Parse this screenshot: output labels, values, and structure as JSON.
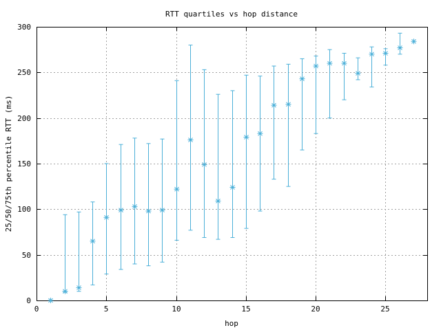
{
  "chart_data": {
    "type": "scatter",
    "title": "RTT quartiles vs hop distance",
    "xlabel": "hop",
    "ylabel": "25/50/75th percentile RTT (ms)",
    "xlim": [
      0,
      28
    ],
    "ylim": [
      0,
      300
    ],
    "xticks": [
      0,
      5,
      10,
      15,
      20,
      25
    ],
    "yticks": [
      0,
      50,
      100,
      150,
      200,
      250,
      300
    ],
    "grid": true,
    "series_color": "#4aafd8",
    "points": [
      {
        "hop": 1,
        "p25": 0,
        "median": 0,
        "p75": 0
      },
      {
        "hop": 2,
        "p25": 9,
        "median": 10,
        "p75": 94
      },
      {
        "hop": 3,
        "p25": 10,
        "median": 14,
        "p75": 97
      },
      {
        "hop": 4,
        "p25": 17,
        "median": 65,
        "p75": 108
      },
      {
        "hop": 5,
        "p25": 29,
        "median": 91,
        "p75": 150
      },
      {
        "hop": 6,
        "p25": 34,
        "median": 99,
        "p75": 171
      },
      {
        "hop": 7,
        "p25": 40,
        "median": 103,
        "p75": 178
      },
      {
        "hop": 8,
        "p25": 38,
        "median": 98,
        "p75": 172
      },
      {
        "hop": 9,
        "p25": 42,
        "median": 99,
        "p75": 177
      },
      {
        "hop": 10,
        "p25": 66,
        "median": 122,
        "p75": 241
      },
      {
        "hop": 11,
        "p25": 77,
        "median": 176,
        "p75": 280
      },
      {
        "hop": 12,
        "p25": 69,
        "median": 149,
        "p75": 253
      },
      {
        "hop": 13,
        "p25": 67,
        "median": 109,
        "p75": 226
      },
      {
        "hop": 14,
        "p25": 69,
        "median": 124,
        "p75": 230
      },
      {
        "hop": 15,
        "p25": 79,
        "median": 179,
        "p75": 247
      },
      {
        "hop": 16,
        "p25": 98,
        "median": 183,
        "p75": 246
      },
      {
        "hop": 17,
        "p25": 133,
        "median": 214,
        "p75": 257
      },
      {
        "hop": 18,
        "p25": 125,
        "median": 215,
        "p75": 259
      },
      {
        "hop": 19,
        "p25": 165,
        "median": 243,
        "p75": 265
      },
      {
        "hop": 20,
        "p25": 183,
        "median": 257,
        "p75": 268
      },
      {
        "hop": 21,
        "p25": 200,
        "median": 260,
        "p75": 275
      },
      {
        "hop": 22,
        "p25": 220,
        "median": 260,
        "p75": 271
      },
      {
        "hop": 23,
        "p25": 242,
        "median": 249,
        "p75": 266
      },
      {
        "hop": 24,
        "p25": 234,
        "median": 270,
        "p75": 278
      },
      {
        "hop": 25,
        "p25": 258,
        "median": 271,
        "p75": 276
      },
      {
        "hop": 26,
        "p25": 270,
        "median": 277,
        "p75": 293
      },
      {
        "hop": 27,
        "p25": 284,
        "median": 284,
        "p75": 284
      }
    ]
  }
}
